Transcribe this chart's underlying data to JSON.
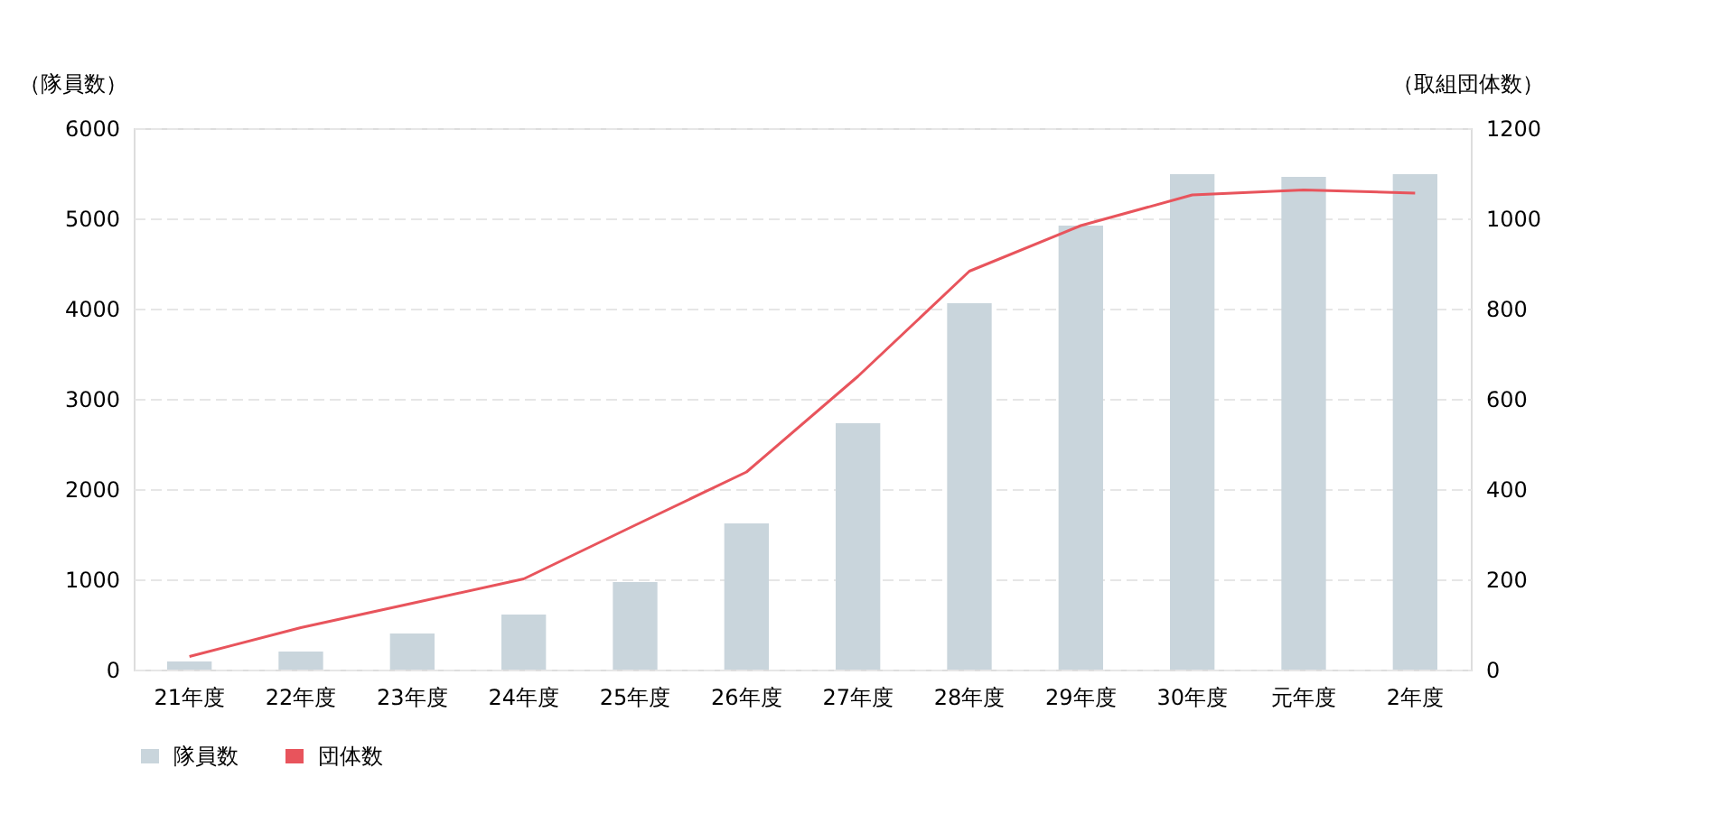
{
  "chart_data": {
    "type": "bar",
    "categories": [
      "21年度",
      "22年度",
      "23年度",
      "24年度",
      "25年度",
      "26年度",
      "27年度",
      "28年度",
      "29年度",
      "30年度",
      "元年度",
      "2年度"
    ],
    "series": [
      {
        "name": "隊員数",
        "color": "#c9d5dc",
        "values": [
          90,
          200,
          400,
          610,
          970,
          1620,
          2730,
          4060,
          4920,
          5490,
          5460,
          5490
        ]
      },
      {
        "name": "団体数",
        "type": "line",
        "axis": "y2",
        "color": "#e8545c",
        "values": [
          29,
          93,
          147,
          201,
          320,
          438,
          650,
          883,
          984,
          1052,
          1063,
          1056
        ]
      }
    ],
    "ylabel": "（隊員数）",
    "y2label": "（取組団体数）",
    "ylim": [
      0,
      6000
    ],
    "yticks": [
      0,
      1000,
      2000,
      3000,
      4000,
      5000,
      6000
    ],
    "y2lim": [
      0,
      1200
    ],
    "y2ticks": [
      0,
      200,
      400,
      600,
      800,
      1000,
      1200
    ],
    "grid": "y",
    "legend": "bottom",
    "marker": "none",
    "line_style": "solid"
  }
}
